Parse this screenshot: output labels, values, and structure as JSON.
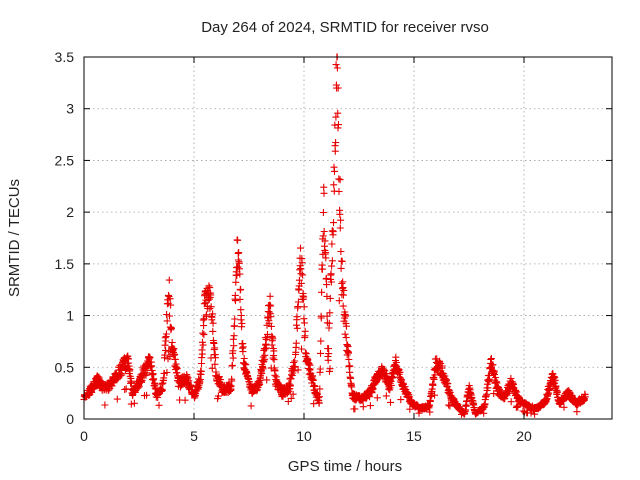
{
  "chart_data": {
    "type": "scatter",
    "title": "Day 264 of 2024, SRMTID for receiver rvso",
    "xlabel": "GPS time / hours",
    "ylabel": "SRMTID / TECUs",
    "xlim": [
      0,
      24
    ],
    "ylim": [
      0,
      3.5
    ],
    "xticks": [
      0,
      5,
      10,
      15,
      20
    ],
    "yticks": [
      0,
      0.5,
      1,
      1.5,
      2,
      2.5,
      3,
      3.5
    ],
    "xtick_labels": [
      "0",
      "5",
      "10",
      "15",
      "20"
    ],
    "ytick_labels": [
      "0",
      "0.5",
      "1",
      "1.5",
      "2",
      "2.5",
      "3",
      "3.5"
    ],
    "grid": true,
    "marker": "+",
    "marker_color": "#e60000",
    "series": [
      {
        "name": "SRMTID",
        "envelope": [
          [
            0.0,
            0.22
          ],
          [
            0.3,
            0.28
          ],
          [
            0.6,
            0.38
          ],
          [
            0.9,
            0.3
          ],
          [
            1.2,
            0.33
          ],
          [
            1.5,
            0.42
          ],
          [
            1.8,
            0.52
          ],
          [
            2.0,
            0.57
          ],
          [
            2.2,
            0.25
          ],
          [
            2.5,
            0.35
          ],
          [
            2.7,
            0.45
          ],
          [
            3.0,
            0.55
          ],
          [
            3.3,
            0.22
          ],
          [
            3.6,
            0.33
          ],
          [
            3.85,
            1.28
          ],
          [
            4.0,
            0.75
          ],
          [
            4.3,
            0.35
          ],
          [
            4.7,
            0.38
          ],
          [
            5.0,
            0.22
          ],
          [
            5.3,
            0.4
          ],
          [
            5.5,
            1.12
          ],
          [
            5.75,
            1.2
          ],
          [
            6.0,
            0.45
          ],
          [
            6.3,
            0.28
          ],
          [
            6.7,
            0.3
          ],
          [
            7.0,
            1.72
          ],
          [
            7.25,
            0.55
          ],
          [
            7.6,
            0.28
          ],
          [
            7.9,
            0.3
          ],
          [
            8.2,
            0.62
          ],
          [
            8.45,
            1.08
          ],
          [
            8.7,
            0.38
          ],
          [
            9.0,
            0.25
          ],
          [
            9.3,
            0.3
          ],
          [
            9.6,
            0.55
          ],
          [
            9.85,
            1.6
          ],
          [
            10.1,
            0.6
          ],
          [
            10.4,
            0.35
          ],
          [
            10.7,
            0.15
          ],
          [
            10.9,
            2.2
          ],
          [
            11.1,
            0.55
          ],
          [
            11.3,
            1.8
          ],
          [
            11.5,
            3.42
          ],
          [
            11.7,
            1.45
          ],
          [
            11.9,
            0.85
          ],
          [
            12.2,
            0.22
          ],
          [
            12.6,
            0.2
          ],
          [
            13.0,
            0.25
          ],
          [
            13.3,
            0.4
          ],
          [
            13.6,
            0.48
          ],
          [
            13.9,
            0.3
          ],
          [
            14.2,
            0.55
          ],
          [
            14.5,
            0.32
          ],
          [
            14.9,
            0.15
          ],
          [
            15.3,
            0.1
          ],
          [
            15.7,
            0.12
          ],
          [
            16.0,
            0.55
          ],
          [
            16.3,
            0.45
          ],
          [
            16.7,
            0.2
          ],
          [
            17.0,
            0.12
          ],
          [
            17.3,
            0.05
          ],
          [
            17.5,
            0.3
          ],
          [
            17.8,
            0.05
          ],
          [
            18.2,
            0.12
          ],
          [
            18.5,
            0.55
          ],
          [
            18.8,
            0.28
          ],
          [
            19.1,
            0.2
          ],
          [
            19.4,
            0.35
          ],
          [
            19.8,
            0.18
          ],
          [
            20.2,
            0.12
          ],
          [
            20.6,
            0.1
          ],
          [
            21.0,
            0.18
          ],
          [
            21.3,
            0.45
          ],
          [
            21.6,
            0.15
          ],
          [
            22.0,
            0.25
          ],
          [
            22.4,
            0.15
          ],
          [
            22.8,
            0.22
          ]
        ]
      }
    ]
  }
}
